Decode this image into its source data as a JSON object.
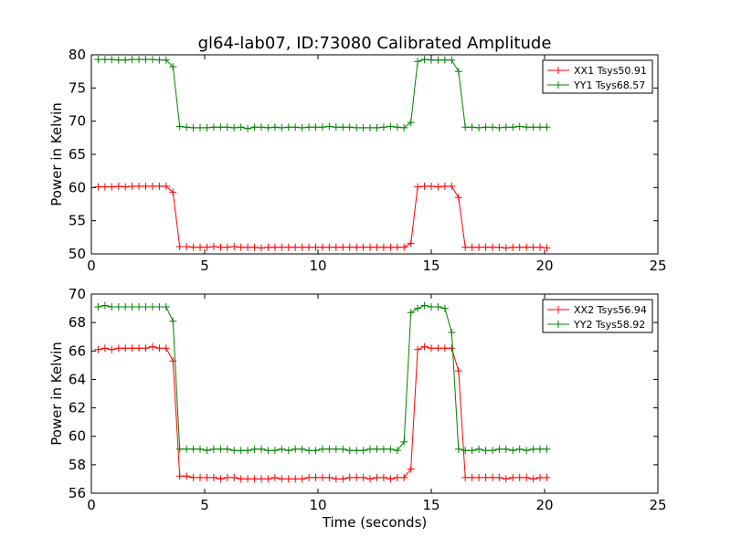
{
  "chart_data": [
    {
      "type": "line",
      "title": "gl64-lab07, ID:73080 Calibrated Amplitude",
      "xlabel": "",
      "ylabel": "Power in Kelvin",
      "xlim": [
        0,
        25
      ],
      "ylim": [
        50,
        80
      ],
      "xticks": [
        "0",
        "5",
        "10",
        "15",
        "20",
        "25"
      ],
      "yticks": [
        "50",
        "55",
        "60",
        "65",
        "70",
        "75",
        "80"
      ],
      "grid": false,
      "legend_position": "top-right",
      "x": [
        0.3,
        0.6,
        0.9,
        1.2,
        1.5,
        1.8,
        2.1,
        2.4,
        2.7,
        3.0,
        3.3,
        3.6,
        3.9,
        4.2,
        4.5,
        4.8,
        5.1,
        5.4,
        5.7,
        6.0,
        6.3,
        6.6,
        6.9,
        7.2,
        7.5,
        7.8,
        8.1,
        8.4,
        8.7,
        9.0,
        9.3,
        9.6,
        9.9,
        10.2,
        10.5,
        10.8,
        11.1,
        11.4,
        11.7,
        12.0,
        12.3,
        12.6,
        12.9,
        13.2,
        13.5,
        13.8,
        14.1,
        14.4,
        14.7,
        15.0,
        15.3,
        15.6,
        15.9,
        16.2,
        16.5,
        16.8,
        17.1,
        17.4,
        17.7,
        18.0,
        18.3,
        18.6,
        18.9,
        19.2,
        19.5,
        19.8,
        20.1
      ],
      "series": [
        {
          "name": "XX1 Tsys50.91",
          "color": "#ff0000",
          "values": [
            60.1,
            60.1,
            60.1,
            60.2,
            60.1,
            60.2,
            60.2,
            60.2,
            60.2,
            60.2,
            60.2,
            59.3,
            51.1,
            51.1,
            51.0,
            51.0,
            51.0,
            51.1,
            51.0,
            51.0,
            51.1,
            51.0,
            51.0,
            51.0,
            50.9,
            51.0,
            51.0,
            51.0,
            51.0,
            51.0,
            51.0,
            51.0,
            51.0,
            51.0,
            51.0,
            51.0,
            51.0,
            51.0,
            51.0,
            51.0,
            51.0,
            51.0,
            51.0,
            51.0,
            51.0,
            51.0,
            51.6,
            60.1,
            60.2,
            60.2,
            60.1,
            60.2,
            60.2,
            58.5,
            51.0,
            51.0,
            51.0,
            51.0,
            51.0,
            51.0,
            50.9,
            51.0,
            51.0,
            51.0,
            51.0,
            51.0,
            50.9
          ]
        },
        {
          "name": "YY1 Tsys68.57",
          "color": "#008000",
          "values": [
            79.3,
            79.3,
            79.3,
            79.2,
            79.2,
            79.3,
            79.3,
            79.3,
            79.3,
            79.2,
            79.2,
            78.2,
            69.2,
            69.1,
            69.0,
            69.0,
            69.0,
            69.1,
            69.1,
            69.1,
            69.0,
            69.1,
            68.9,
            69.1,
            69.1,
            69.0,
            69.1,
            69.0,
            69.1,
            69.1,
            69.0,
            69.1,
            69.1,
            69.1,
            69.2,
            69.1,
            69.1,
            69.1,
            69.0,
            69.0,
            69.0,
            69.0,
            69.1,
            69.2,
            69.1,
            69.0,
            69.8,
            79.0,
            79.3,
            79.2,
            79.2,
            79.2,
            79.2,
            77.5,
            69.1,
            69.1,
            69.0,
            69.1,
            69.1,
            69.0,
            69.1,
            69.1,
            69.2,
            69.1,
            69.1,
            69.1,
            69.1
          ]
        }
      ]
    },
    {
      "type": "line",
      "title": "",
      "xlabel": "Time (seconds)",
      "ylabel": "Power in Kelvin",
      "xlim": [
        0,
        25
      ],
      "ylim": [
        56,
        70
      ],
      "xticks": [
        "0",
        "5",
        "10",
        "15",
        "20",
        "25"
      ],
      "yticks": [
        "56",
        "58",
        "60",
        "62",
        "64",
        "66",
        "68",
        "70"
      ],
      "grid": false,
      "legend_position": "top-right",
      "x": [
        0.3,
        0.6,
        0.9,
        1.2,
        1.5,
        1.8,
        2.1,
        2.4,
        2.7,
        3.0,
        3.3,
        3.6,
        3.9,
        4.2,
        4.5,
        4.8,
        5.1,
        5.4,
        5.7,
        6.0,
        6.3,
        6.6,
        6.9,
        7.2,
        7.5,
        7.8,
        8.1,
        8.4,
        8.7,
        9.0,
        9.3,
        9.6,
        9.9,
        10.2,
        10.5,
        10.8,
        11.1,
        11.4,
        11.7,
        12.0,
        12.3,
        12.6,
        12.9,
        13.2,
        13.5,
        13.8,
        14.1,
        14.4,
        14.7,
        15.0,
        15.3,
        15.6,
        15.9,
        16.2,
        16.5,
        16.8,
        17.1,
        17.4,
        17.7,
        18.0,
        18.3,
        18.6,
        18.9,
        19.2,
        19.5,
        19.8,
        20.1
      ],
      "series": [
        {
          "name": "XX2 Tsys56.94",
          "color": "#ff0000",
          "values": [
            66.1,
            66.2,
            66.1,
            66.2,
            66.2,
            66.2,
            66.2,
            66.2,
            66.3,
            66.2,
            66.2,
            65.3,
            57.2,
            57.2,
            57.1,
            57.1,
            57.1,
            57.1,
            57.0,
            57.1,
            57.1,
            57.0,
            57.0,
            57.0,
            57.0,
            57.0,
            57.1,
            57.0,
            57.0,
            57.0,
            57.0,
            57.1,
            57.1,
            57.1,
            57.1,
            57.0,
            57.0,
            57.1,
            57.1,
            57.1,
            57.0,
            57.1,
            57.1,
            57.0,
            57.1,
            57.1,
            57.7,
            66.1,
            66.3,
            66.2,
            66.2,
            66.2,
            66.2,
            64.6,
            57.1,
            57.1,
            57.1,
            57.1,
            57.1,
            57.1,
            57.0,
            57.1,
            57.1,
            57.1,
            57.0,
            57.1,
            57.1
          ]
        },
        {
          "name": "YY2 Tsys58.92",
          "color": "#008000",
          "values": [
            69.1,
            69.2,
            69.1,
            69.1,
            69.1,
            69.1,
            69.1,
            69.1,
            69.1,
            69.1,
            69.1,
            68.1,
            59.1,
            59.1,
            59.1,
            59.1,
            59.0,
            59.1,
            59.1,
            59.1,
            59.0,
            59.0,
            59.0,
            59.1,
            59.1,
            59.0,
            59.0,
            59.1,
            59.0,
            59.1,
            59.1,
            59.0,
            59.0,
            59.1,
            59.1,
            59.1,
            59.1,
            59.0,
            59.0,
            59.0,
            59.1,
            59.1,
            59.1,
            59.1,
            59.0,
            59.6,
            68.7,
            69.0,
            69.2,
            69.1,
            69.1,
            69.0,
            67.3,
            59.1,
            59.0,
            59.0,
            59.1,
            59.0,
            59.0,
            59.1,
            59.1,
            59.0,
            59.1,
            59.0,
            59.1,
            59.1,
            59.1
          ]
        }
      ]
    }
  ]
}
